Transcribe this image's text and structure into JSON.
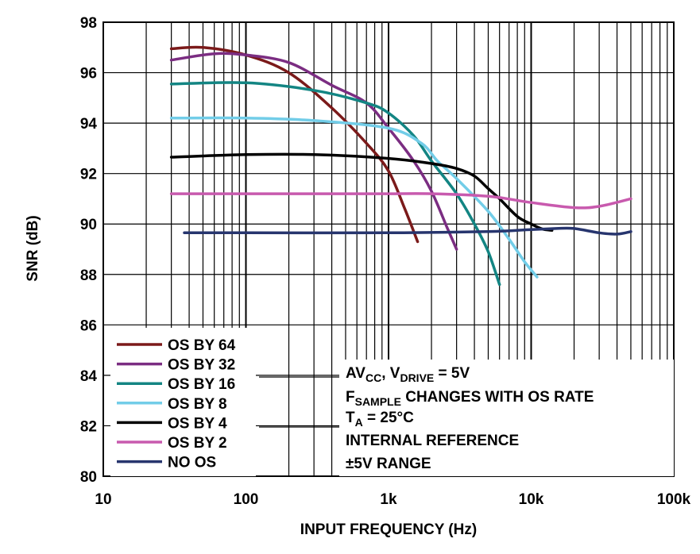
{
  "chart_data": {
    "type": "line",
    "xlabel": "INPUT FREQUENCY (Hz)",
    "ylabel": "SNR (dB)",
    "x_scale": "log",
    "xlim": [
      10,
      100000
    ],
    "ylim": [
      80,
      98
    ],
    "x_ticks": [
      10,
      100,
      1000,
      10000,
      100000
    ],
    "x_tick_labels": [
      "10",
      "100",
      "1k",
      "10k",
      "100k"
    ],
    "y_ticks": [
      80,
      82,
      84,
      86,
      88,
      90,
      92,
      94,
      96,
      98
    ],
    "y_tick_labels": [
      "80",
      "82",
      "84",
      "86",
      "88",
      "90",
      "92",
      "94",
      "96",
      "98"
    ],
    "grid": "on (log minor vertical gridlines)",
    "legend_position": "lower-left",
    "series": [
      {
        "name": "OS BY 64",
        "color": "#7b1a1a",
        "points": [
          [
            30,
            96.95
          ],
          [
            50,
            97.0
          ],
          [
            100,
            96.7
          ],
          [
            200,
            96.0
          ],
          [
            400,
            94.6
          ],
          [
            700,
            93.2
          ],
          [
            1000,
            92.1
          ],
          [
            1300,
            90.6
          ],
          [
            1600,
            89.3
          ]
        ]
      },
      {
        "name": "OS BY 32",
        "color": "#7b2d82",
        "points": [
          [
            30,
            96.5
          ],
          [
            60,
            96.75
          ],
          [
            100,
            96.7
          ],
          [
            200,
            96.4
          ],
          [
            400,
            95.5
          ],
          [
            700,
            94.8
          ],
          [
            1000,
            93.8
          ],
          [
            1500,
            92.5
          ],
          [
            2000,
            91.3
          ],
          [
            2600,
            89.8
          ],
          [
            3000,
            89.0
          ]
        ]
      },
      {
        "name": "OS BY 16",
        "color": "#138583",
        "points": [
          [
            30,
            95.55
          ],
          [
            100,
            95.6
          ],
          [
            300,
            95.3
          ],
          [
            700,
            94.8
          ],
          [
            1000,
            94.4
          ],
          [
            1500,
            93.5
          ],
          [
            2000,
            92.5
          ],
          [
            3000,
            91.2
          ],
          [
            4000,
            90.0
          ],
          [
            5000,
            88.9
          ],
          [
            6000,
            87.6
          ]
        ]
      },
      {
        "name": "OS BY 8",
        "color": "#72cde8",
        "points": [
          [
            30,
            94.2
          ],
          [
            100,
            94.2
          ],
          [
            300,
            94.1
          ],
          [
            1000,
            93.8
          ],
          [
            1700,
            93.2
          ],
          [
            2200,
            92.5
          ],
          [
            3000,
            91.8
          ],
          [
            5000,
            90.5
          ],
          [
            7000,
            89.4
          ],
          [
            9000,
            88.5
          ],
          [
            11000,
            87.9
          ]
        ]
      },
      {
        "name": "OS BY 4",
        "color": "#000000",
        "points": [
          [
            30,
            92.65
          ],
          [
            100,
            92.75
          ],
          [
            300,
            92.75
          ],
          [
            1000,
            92.6
          ],
          [
            2000,
            92.4
          ],
          [
            3000,
            92.2
          ],
          [
            4000,
            91.9
          ],
          [
            5000,
            91.4
          ],
          [
            6000,
            91.0
          ],
          [
            8000,
            90.3
          ],
          [
            10000,
            90.0
          ],
          [
            12000,
            89.8
          ],
          [
            14000,
            89.75
          ]
        ]
      },
      {
        "name": "OS BY 2",
        "color": "#c85aae",
        "points": [
          [
            30,
            91.2
          ],
          [
            100,
            91.2
          ],
          [
            500,
            91.2
          ],
          [
            1000,
            91.2
          ],
          [
            2000,
            91.2
          ],
          [
            5000,
            91.1
          ],
          [
            10000,
            90.85
          ],
          [
            20000,
            90.65
          ],
          [
            30000,
            90.7
          ],
          [
            50000,
            91.0
          ]
        ]
      },
      {
        "name": "NO OS",
        "color": "#27356e",
        "points": [
          [
            37,
            89.65
          ],
          [
            100,
            89.65
          ],
          [
            1000,
            89.65
          ],
          [
            5000,
            89.7
          ],
          [
            10000,
            89.78
          ],
          [
            15000,
            89.82
          ],
          [
            20000,
            89.82
          ],
          [
            30000,
            89.65
          ],
          [
            40000,
            89.6
          ],
          [
            50000,
            89.7
          ]
        ]
      }
    ],
    "annotation_lines": [
      "AVCC, VDRIVE = 5V",
      "FSAMPLE CHANGES WITH OS RATE",
      "TA = 25°C",
      "INTERNAL REFERENCE",
      "±5V RANGE"
    ]
  }
}
